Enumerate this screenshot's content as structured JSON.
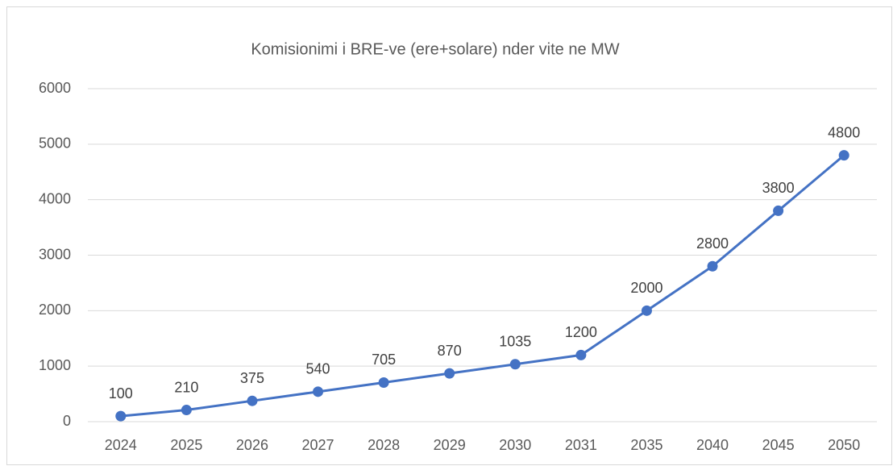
{
  "chart_data": {
    "type": "line",
    "title": "Komisionimi i BRE-ve (ere+solare) nder vite ne MW",
    "categories": [
      "2024",
      "2025",
      "2026",
      "2027",
      "2028",
      "2029",
      "2030",
      "2031",
      "2035",
      "2040",
      "2045",
      "2050"
    ],
    "values": [
      100,
      210,
      375,
      540,
      705,
      870,
      1035,
      1200,
      2000,
      2800,
      3800,
      4800
    ],
    "color": "#4472c4",
    "ylim": [
      0,
      6000
    ],
    "yticks": [
      0,
      1000,
      2000,
      3000,
      4000,
      5000,
      6000
    ],
    "grid": true,
    "data_labels": true
  }
}
